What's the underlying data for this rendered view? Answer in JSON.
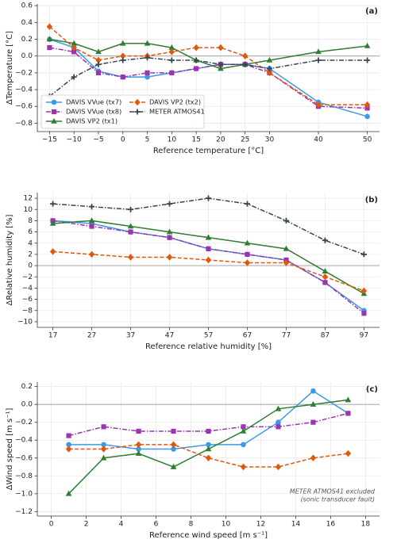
{
  "chart_data": [
    {
      "type": "line",
      "panel_label": "(a)",
      "xlabel": "Reference temperature [°C]",
      "ylabel": "ΔTemperature [°C]",
      "x": [
        -15,
        -10,
        -5,
        0,
        5,
        10,
        15,
        20,
        25,
        30,
        40,
        50
      ],
      "xlim": [
        -17.5,
        52.5
      ],
      "xticks": [
        {
          "value": -15,
          "label": "−15"
        },
        {
          "value": -10,
          "label": "−10"
        },
        {
          "value": -5,
          "label": "−5"
        },
        0,
        5,
        10,
        15,
        20,
        25,
        30,
        40,
        50
      ],
      "ylim": [
        -0.9,
        0.62
      ],
      "yticks": [
        {
          "value": -0.8,
          "label": "−0.8"
        },
        {
          "value": -0.6,
          "label": "−0.6"
        },
        {
          "value": -0.4,
          "label": "−0.4"
        },
        {
          "value": -0.2,
          "label": "−0.2"
        },
        {
          "value": 0,
          "label": "0.0"
        },
        0.2,
        0.4,
        0.6
      ],
      "grid": true,
      "legend": "lower left",
      "series": [
        {
          "name": "DAVIS VVue (tx7)",
          "color": "#3a9ae8",
          "marker": "circle",
          "dash": "solid",
          "values": [
            0.2,
            0.1,
            -0.18,
            -0.25,
            -0.25,
            -0.2,
            -0.15,
            -0.1,
            -0.1,
            -0.15,
            -0.55,
            -0.72
          ]
        },
        {
          "name": "DAVIS VVue (tx8)",
          "color": "#9c33b0",
          "marker": "square",
          "dash": "dashdot",
          "values": [
            0.1,
            0.05,
            -0.2,
            -0.25,
            -0.2,
            -0.2,
            -0.15,
            -0.1,
            -0.1,
            -0.2,
            -0.6,
            -0.62
          ]
        },
        {
          "name": "DAVIS VP2 (tx1)",
          "color": "#2e7d32",
          "marker": "triangle",
          "dash": "solid",
          "values": [
            0.2,
            0.15,
            0.05,
            0.15,
            0.15,
            0.1,
            -0.05,
            -0.15,
            -0.1,
            -0.05,
            0.05,
            0.12
          ]
        },
        {
          "name": "DAVIS VP2 (tx2)",
          "color": "#e0580c",
          "marker": "diamond",
          "dash": "dashed",
          "values": [
            0.35,
            0.1,
            -0.05,
            0,
            0,
            0.05,
            0.1,
            0.1,
            0,
            -0.2,
            -0.58,
            -0.58
          ]
        },
        {
          "name": "METER ATMOS41",
          "color": "#37474f",
          "marker": "plus",
          "dash": "dashdot",
          "values": [
            -0.48,
            -0.25,
            -0.1,
            -0.05,
            -0.02,
            -0.05,
            -0.05,
            -0.1,
            -0.1,
            -0.15,
            -0.05,
            -0.05
          ]
        }
      ]
    },
    {
      "type": "line",
      "panel_label": "(b)",
      "xlabel": "Reference relative humidity [%]",
      "ylabel": "ΔRelative humidity [%]",
      "x": [
        17,
        27,
        37,
        47,
        57,
        67,
        77,
        87,
        97
      ],
      "xlim": [
        13,
        101
      ],
      "xticks": [
        17,
        27,
        37,
        47,
        57,
        67,
        77,
        87,
        97
      ],
      "ylim": [
        -11,
        13
      ],
      "yticks": [
        {
          "value": -10,
          "label": "−10"
        },
        {
          "value": -8,
          "label": "−8"
        },
        {
          "value": -6,
          "label": "−6"
        },
        {
          "value": -4,
          "label": "−4"
        },
        {
          "value": -2,
          "label": "−2"
        },
        0,
        2,
        4,
        6,
        8,
        10,
        12
      ],
      "grid": true,
      "series": [
        {
          "color": "#3a9ae8",
          "marker": "circle",
          "dash": "solid",
          "values": [
            8,
            7.5,
            6,
            5,
            3,
            2,
            1,
            -3,
            -8
          ]
        },
        {
          "color": "#9c33b0",
          "marker": "square",
          "dash": "dashdot",
          "values": [
            8,
            7,
            6,
            5,
            3,
            2,
            1,
            -3,
            -8.5
          ]
        },
        {
          "color": "#2e7d32",
          "marker": "triangle",
          "dash": "solid",
          "values": [
            7.5,
            8,
            7,
            6,
            5,
            4,
            3,
            -1,
            -5
          ]
        },
        {
          "color": "#e0580c",
          "marker": "diamond",
          "dash": "dashed",
          "values": [
            2.5,
            2,
            1.5,
            1.5,
            1,
            0.5,
            0.5,
            -2,
            -4.5
          ]
        },
        {
          "color": "#37474f",
          "marker": "plus",
          "dash": "dashdot",
          "values": [
            11,
            10.5,
            10,
            11,
            12,
            11,
            8,
            4.5,
            2
          ]
        }
      ]
    },
    {
      "type": "line",
      "panel_label": "(c)",
      "xlabel": "Reference wind speed [m s⁻¹]",
      "ylabel": "ΔWind speed [m s⁻¹]",
      "x": [
        1,
        3,
        5,
        7,
        9,
        11,
        13,
        15,
        17
      ],
      "xlim": [
        -0.8,
        18.8
      ],
      "xticks": [
        0,
        2,
        4,
        6,
        8,
        10,
        12,
        14,
        16,
        18
      ],
      "ylim": [
        -1.25,
        0.25
      ],
      "yticks": [
        {
          "value": -1.2,
          "label": "−1.2"
        },
        {
          "value": -1,
          "label": "−1.0"
        },
        {
          "value": -0.8,
          "label": "−0.8"
        },
        {
          "value": -0.6,
          "label": "−0.6"
        },
        {
          "value": -0.4,
          "label": "−0.4"
        },
        {
          "value": -0.2,
          "label": "−0.2"
        },
        {
          "value": 0,
          "label": "0.0"
        },
        0.2
      ],
      "grid": true,
      "annotation": [
        "METER ATMOS41 excluded",
        "(sonic transducer fault)"
      ],
      "series": [
        {
          "color": "#3a9ae8",
          "marker": "circle",
          "dash": "solid",
          "values": [
            -0.45,
            -0.45,
            -0.5,
            -0.5,
            -0.45,
            -0.45,
            -0.2,
            0.15,
            -0.1
          ]
        },
        {
          "color": "#9c33b0",
          "marker": "square",
          "dash": "dashdot",
          "values": [
            -0.35,
            -0.25,
            -0.3,
            -0.3,
            -0.3,
            -0.25,
            -0.25,
            -0.2,
            -0.1
          ]
        },
        {
          "color": "#2e7d32",
          "marker": "triangle",
          "dash": "solid",
          "values": [
            -1,
            -0.6,
            -0.55,
            -0.7,
            -0.5,
            -0.3,
            -0.05,
            0,
            0.05
          ]
        },
        {
          "color": "#e0580c",
          "marker": "diamond",
          "dash": "dashed",
          "values": [
            -0.5,
            -0.5,
            -0.45,
            -0.45,
            -0.6,
            -0.7,
            -0.7,
            -0.6,
            -0.55
          ]
        }
      ]
    }
  ]
}
